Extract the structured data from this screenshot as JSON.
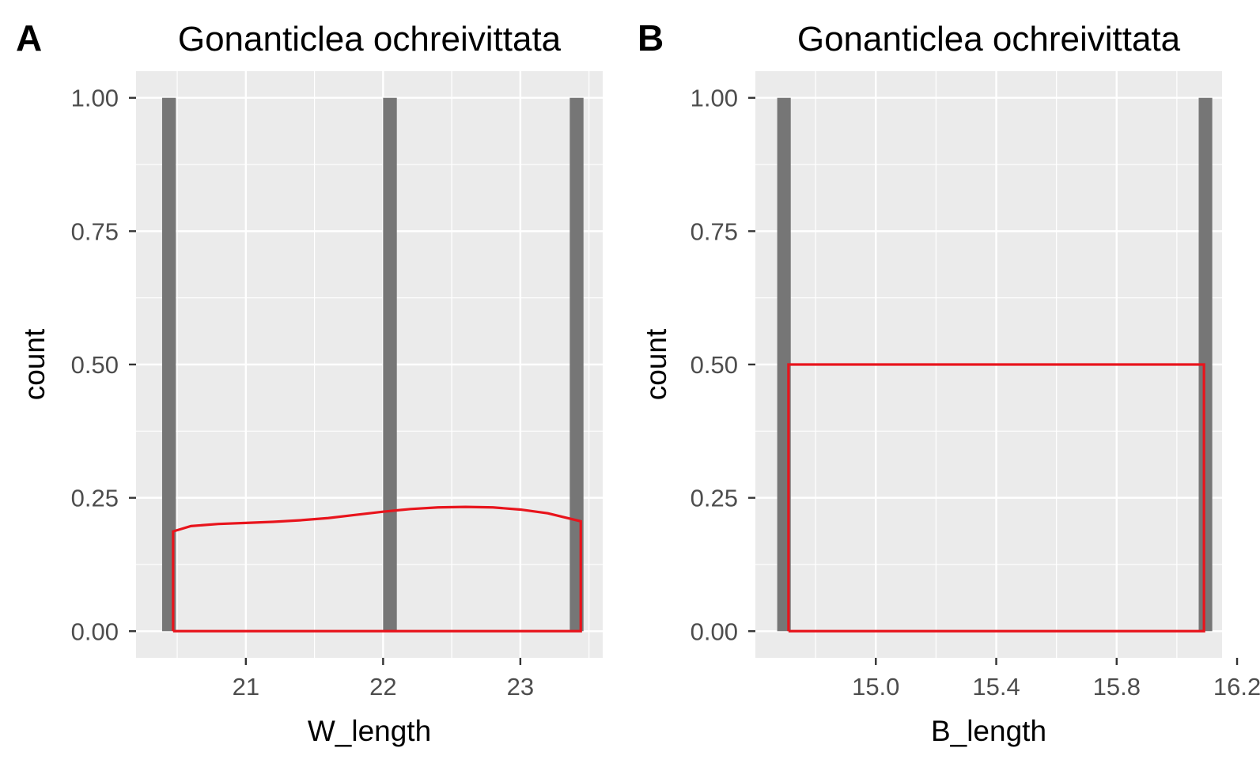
{
  "chart_data": [
    {
      "panel_label": "A",
      "type": "bar",
      "subtype": "histogram-with-density",
      "title": "Gonanticlea ochreivittata",
      "xlabel": "W_length",
      "ylabel": "count",
      "xlim": [
        20.2,
        23.6
      ],
      "ylim": [
        -0.05,
        1.05
      ],
      "x_ticks": [
        21,
        22,
        23
      ],
      "x_tick_labels": [
        "21",
        "22",
        "23"
      ],
      "y_ticks": [
        0,
        0.25,
        0.5,
        0.75,
        1.0
      ],
      "y_tick_labels": [
        "0.00",
        "0.25",
        "0.50",
        "0.75",
        "1.00"
      ],
      "bar_width": 0.1,
      "bars": [
        {
          "x": 20.44,
          "count": 1
        },
        {
          "x": 22.05,
          "count": 1
        },
        {
          "x": 23.41,
          "count": 1
        }
      ],
      "density": {
        "color": "#e8141c",
        "x": [
          20.47,
          20.6,
          20.8,
          21.0,
          21.2,
          21.4,
          21.6,
          21.8,
          22.0,
          22.2,
          22.4,
          22.6,
          22.8,
          23.0,
          23.2,
          23.44
        ],
        "y": [
          0.187,
          0.197,
          0.201,
          0.203,
          0.205,
          0.208,
          0.212,
          0.218,
          0.224,
          0.229,
          0.232,
          0.233,
          0.232,
          0.228,
          0.221,
          0.206
        ]
      },
      "grid": true
    },
    {
      "panel_label": "B",
      "type": "bar",
      "subtype": "histogram-with-density",
      "title": "Gonanticlea ochreivittata",
      "xlabel": "B_length",
      "ylabel": "count",
      "xlim": [
        14.6,
        16.15
      ],
      "ylim": [
        -0.05,
        1.05
      ],
      "x_ticks": [
        15.0,
        15.4,
        15.8,
        16.2
      ],
      "x_tick_labels": [
        "15.0",
        "15.4",
        "15.8",
        "16.2"
      ],
      "y_ticks": [
        0,
        0.25,
        0.5,
        0.75,
        1.0
      ],
      "y_tick_labels": [
        "0.00",
        "0.25",
        "0.50",
        "0.75",
        "1.00"
      ],
      "bar_width": 0.045,
      "bars": [
        {
          "x": 14.695,
          "count": 1
        },
        {
          "x": 16.095,
          "count": 1
        }
      ],
      "density": {
        "color": "#e8141c",
        "x": [
          14.71,
          14.71,
          16.09,
          16.09
        ],
        "y": [
          0,
          0.5,
          0.5,
          0
        ]
      },
      "grid": true
    }
  ]
}
